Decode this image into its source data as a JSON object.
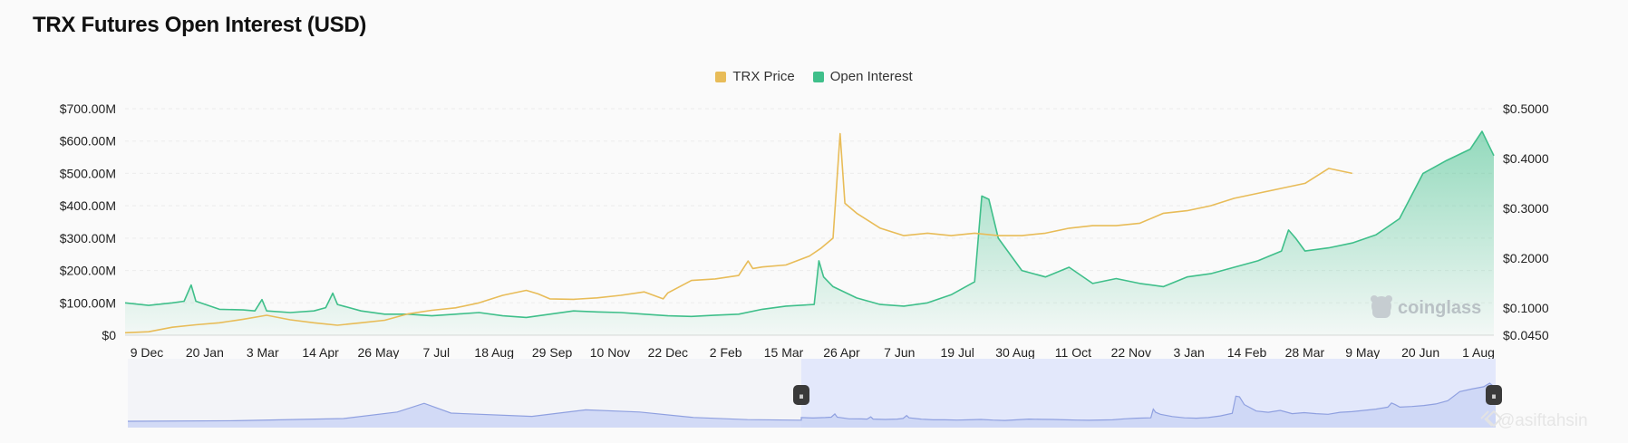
{
  "chart_data": {
    "type": "line",
    "title": "TRX Futures Open Interest (USD)",
    "legend": {
      "position": "top-center"
    },
    "grid": true,
    "x_tick_labels": [
      "9 Dec",
      "20 Jan",
      "3 Mar",
      "14 Apr",
      "26 May",
      "7 Jul",
      "18 Aug",
      "29 Sep",
      "10 Nov",
      "22 Dec",
      "2 Feb",
      "15 Mar",
      "26 Apr",
      "7 Jun",
      "19 Jul",
      "30 Aug",
      "11 Oct",
      "22 Nov",
      "3 Jan",
      "14 Feb",
      "28 Mar",
      "9 May",
      "20 Jun",
      "1 Aug"
    ],
    "y_left": {
      "label": "",
      "ticks": [
        "$0",
        "$100.00M",
        "$200.00M",
        "$300.00M",
        "$400.00M",
        "$500.00M",
        "$600.00M",
        "$700.00M"
      ],
      "range": [
        0,
        700
      ]
    },
    "y_right": {
      "label": "",
      "ticks": [
        "$0.0450",
        "$0.1000",
        "$0.2000",
        "$0.3000",
        "$0.4000",
        "$0.5000"
      ],
      "range": [
        0.045,
        0.5
      ]
    },
    "series": [
      {
        "name": "TRX Price",
        "axis": "right",
        "color": "#e8bc58",
        "points": [
          [
            0,
            0.05
          ],
          [
            1,
            0.052
          ],
          [
            2,
            0.061
          ],
          [
            3,
            0.066
          ],
          [
            4,
            0.07
          ],
          [
            5,
            0.077
          ],
          [
            6,
            0.085
          ],
          [
            7,
            0.076
          ],
          [
            8,
            0.07
          ],
          [
            9,
            0.065
          ],
          [
            10,
            0.07
          ],
          [
            11,
            0.075
          ],
          [
            12,
            0.088
          ],
          [
            13,
            0.095
          ],
          [
            14,
            0.1
          ],
          [
            15,
            0.11
          ],
          [
            16,
            0.125
          ],
          [
            17,
            0.135
          ],
          [
            17.5,
            0.128
          ],
          [
            18,
            0.118
          ],
          [
            19,
            0.117
          ],
          [
            20,
            0.12
          ],
          [
            21,
            0.125
          ],
          [
            22,
            0.132
          ],
          [
            22.8,
            0.118
          ],
          [
            23,
            0.13
          ],
          [
            24,
            0.155
          ],
          [
            25,
            0.158
          ],
          [
            26,
            0.165
          ],
          [
            26.4,
            0.194
          ],
          [
            26.6,
            0.179
          ],
          [
            27,
            0.182
          ],
          [
            28,
            0.186
          ],
          [
            29,
            0.204
          ],
          [
            29.5,
            0.22
          ],
          [
            30,
            0.24
          ],
          [
            30.3,
            0.45
          ],
          [
            30.5,
            0.31
          ],
          [
            31,
            0.29
          ],
          [
            32,
            0.26
          ],
          [
            33,
            0.245
          ],
          [
            34,
            0.25
          ],
          [
            35,
            0.245
          ],
          [
            36,
            0.25
          ],
          [
            37,
            0.245
          ],
          [
            38,
            0.245
          ],
          [
            39,
            0.25
          ],
          [
            40,
            0.26
          ],
          [
            41,
            0.265
          ],
          [
            42,
            0.265
          ],
          [
            43,
            0.27
          ],
          [
            44,
            0.29
          ],
          [
            45,
            0.295
          ],
          [
            46,
            0.305
          ],
          [
            47,
            0.32
          ],
          [
            48,
            0.33
          ],
          [
            49,
            0.34
          ],
          [
            50,
            0.35
          ],
          [
            51,
            0.38
          ],
          [
            52,
            0.37
          ]
        ]
      },
      {
        "name": "Open Interest",
        "axis": "left",
        "color": "#3fbf8a",
        "points": [
          [
            0,
            100
          ],
          [
            1,
            92
          ],
          [
            2,
            100
          ],
          [
            2.5,
            105
          ],
          [
            2.8,
            155
          ],
          [
            3,
            105
          ],
          [
            4,
            80
          ],
          [
            5,
            78
          ],
          [
            5.5,
            75
          ],
          [
            5.8,
            110
          ],
          [
            6,
            75
          ],
          [
            7,
            70
          ],
          [
            8,
            75
          ],
          [
            8.5,
            85
          ],
          [
            8.8,
            130
          ],
          [
            9,
            95
          ],
          [
            10,
            75
          ],
          [
            11,
            65
          ],
          [
            12,
            65
          ],
          [
            13,
            60
          ],
          [
            14,
            65
          ],
          [
            15,
            70
          ],
          [
            16,
            60
          ],
          [
            17,
            55
          ],
          [
            18,
            65
          ],
          [
            19,
            75
          ],
          [
            20,
            72
          ],
          [
            21,
            70
          ],
          [
            22,
            65
          ],
          [
            23,
            60
          ],
          [
            24,
            58
          ],
          [
            25,
            62
          ],
          [
            26,
            65
          ],
          [
            27,
            80
          ],
          [
            28,
            90
          ],
          [
            29.2,
            95
          ],
          [
            29.4,
            230
          ],
          [
            29.6,
            180
          ],
          [
            30,
            150
          ],
          [
            31,
            115
          ],
          [
            32,
            95
          ],
          [
            33,
            90
          ],
          [
            34,
            100
          ],
          [
            35,
            125
          ],
          [
            36,
            165
          ],
          [
            36.3,
            430
          ],
          [
            36.6,
            420
          ],
          [
            37,
            300
          ],
          [
            38,
            200
          ],
          [
            39,
            180
          ],
          [
            40,
            210
          ],
          [
            41,
            160
          ],
          [
            42,
            175
          ],
          [
            43,
            160
          ],
          [
            44,
            150
          ],
          [
            45,
            180
          ],
          [
            46,
            190
          ],
          [
            47,
            210
          ],
          [
            48,
            230
          ],
          [
            49,
            260
          ],
          [
            49.3,
            325
          ],
          [
            49.6,
            300
          ],
          [
            50,
            260
          ],
          [
            51,
            270
          ],
          [
            52,
            285
          ],
          [
            53,
            310
          ],
          [
            54,
            360
          ],
          [
            55,
            500
          ],
          [
            56,
            540
          ],
          [
            57,
            575
          ],
          [
            57.5,
            630
          ],
          [
            58,
            555
          ]
        ]
      }
    ],
    "navigator": {
      "handle_left_glyph": "⏸",
      "handle_right_glyph": "⏸"
    }
  },
  "watermark": {
    "brand": "coinglass",
    "credit": "@asiftahsin"
  },
  "colors": {
    "price": "#e8bc58",
    "open_interest": "#3fbf8a",
    "navigator_fill": "#c9d3f5",
    "navigator_line": "#8fa0e0"
  }
}
